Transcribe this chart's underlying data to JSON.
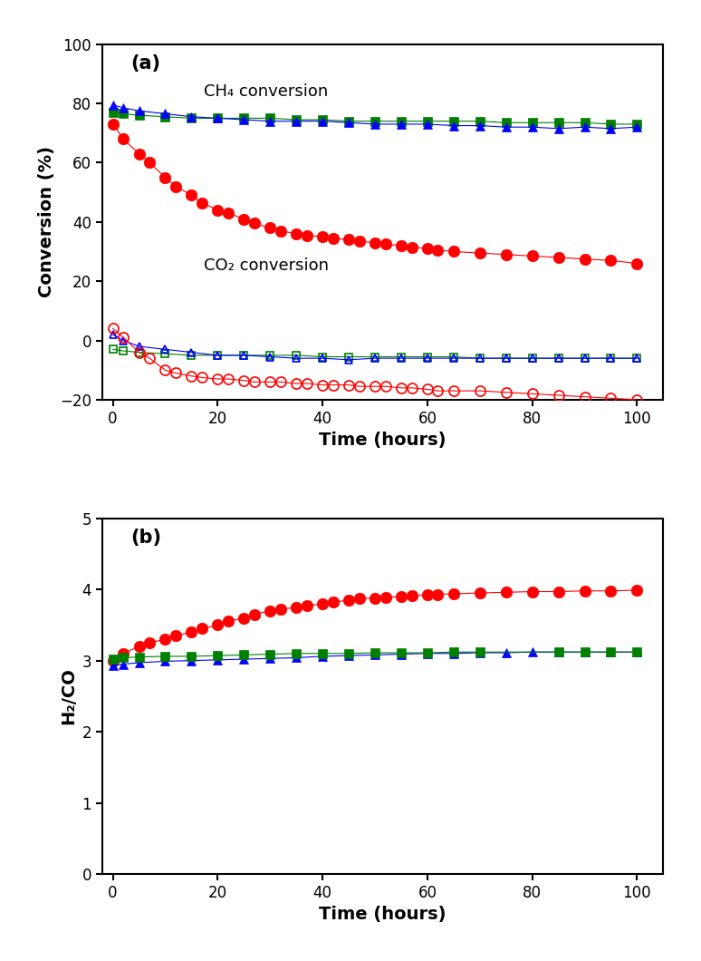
{
  "panel_a": {
    "title_label": "(a)",
    "xlabel": "Time (hours)",
    "ylabel": "Conversion (%)",
    "ylim": [
      -20,
      100
    ],
    "xlim": [
      -2,
      105
    ],
    "yticks": [
      -20,
      0,
      20,
      40,
      60,
      80,
      100
    ],
    "xticks": [
      0,
      20,
      40,
      60,
      80,
      100
    ],
    "ch4_label": "CH₄ conversion",
    "co2_label": "CO₂ conversion",
    "ch4_green_x": [
      0,
      2,
      5,
      10,
      15,
      20,
      25,
      30,
      35,
      40,
      45,
      50,
      55,
      60,
      65,
      70,
      75,
      80,
      85,
      90,
      95,
      100
    ],
    "ch4_green_y": [
      77,
      76.5,
      76,
      75.5,
      75,
      75,
      75,
      75,
      74.5,
      74.5,
      74,
      74,
      74,
      74,
      74,
      74,
      73.5,
      73.5,
      73.5,
      73.5,
      73,
      73
    ],
    "ch4_blue_x": [
      0,
      2,
      5,
      10,
      15,
      20,
      25,
      30,
      35,
      40,
      45,
      50,
      55,
      60,
      65,
      70,
      75,
      80,
      85,
      90,
      95,
      100
    ],
    "ch4_blue_y": [
      79.5,
      78.5,
      77.5,
      76.5,
      75.5,
      75,
      74.5,
      74,
      74,
      74,
      73.5,
      73,
      73,
      73,
      72.5,
      72.5,
      72,
      72,
      71.5,
      72,
      71.5,
      72
    ],
    "ch4_red_x": [
      0,
      2,
      5,
      7,
      10,
      12,
      15,
      17,
      20,
      22,
      25,
      27,
      30,
      32,
      35,
      37,
      40,
      42,
      45,
      47,
      50,
      52,
      55,
      57,
      60,
      62,
      65,
      70,
      75,
      80,
      85,
      90,
      95,
      100
    ],
    "ch4_red_y": [
      73,
      68,
      63,
      60,
      55,
      52,
      49,
      46.5,
      44,
      43,
      41,
      39.5,
      38,
      37,
      36,
      35.5,
      35,
      34.5,
      34,
      33.5,
      33,
      32.5,
      32,
      31.5,
      31,
      30.5,
      30,
      29.5,
      29,
      28.5,
      28,
      27.5,
      27,
      26
    ],
    "co2_green_x": [
      0,
      2,
      5,
      10,
      15,
      20,
      25,
      30,
      35,
      40,
      45,
      50,
      55,
      60,
      65,
      70,
      75,
      80,
      85,
      90,
      95,
      100
    ],
    "co2_green_y": [
      -3,
      -3.5,
      -4,
      -4.5,
      -5,
      -5,
      -5,
      -5,
      -5,
      -5.5,
      -5.5,
      -5.5,
      -5.5,
      -5.5,
      -5.5,
      -6,
      -6,
      -6,
      -6,
      -6,
      -6,
      -6
    ],
    "co2_blue_x": [
      0,
      2,
      5,
      10,
      15,
      20,
      25,
      30,
      35,
      40,
      45,
      50,
      55,
      60,
      65,
      70,
      75,
      80,
      85,
      90,
      95,
      100
    ],
    "co2_blue_y": [
      2,
      0,
      -2,
      -3,
      -4,
      -5,
      -5,
      -5.5,
      -6,
      -6,
      -6.5,
      -6,
      -6,
      -6,
      -6,
      -6,
      -6,
      -6,
      -6,
      -6,
      -6,
      -6
    ],
    "co2_red_x": [
      0,
      2,
      5,
      7,
      10,
      12,
      15,
      17,
      20,
      22,
      25,
      27,
      30,
      32,
      35,
      37,
      40,
      42,
      45,
      47,
      50,
      52,
      55,
      57,
      60,
      62,
      65,
      70,
      75,
      80,
      85,
      90,
      95,
      100
    ],
    "co2_red_y": [
      4,
      1,
      -4,
      -6,
      -10,
      -11,
      -12,
      -12.5,
      -13,
      -13,
      -13.5,
      -14,
      -14,
      -14,
      -14.5,
      -14.5,
      -15,
      -15,
      -15,
      -15.5,
      -15.5,
      -15.5,
      -16,
      -16,
      -16.5,
      -17,
      -17,
      -17,
      -17.5,
      -18,
      -18.5,
      -19,
      -19.5,
      -20
    ]
  },
  "panel_b": {
    "title_label": "(b)",
    "xlabel": "Time (hours)",
    "ylabel": "H₂/CO",
    "ylim": [
      0,
      5
    ],
    "xlim": [
      -2,
      105
    ],
    "yticks": [
      0,
      1,
      2,
      3,
      4,
      5
    ],
    "xticks": [
      0,
      20,
      40,
      60,
      80,
      100
    ],
    "red_x": [
      0,
      2,
      5,
      7,
      10,
      12,
      15,
      17,
      20,
      22,
      25,
      27,
      30,
      32,
      35,
      37,
      40,
      42,
      45,
      47,
      50,
      52,
      55,
      57,
      60,
      62,
      65,
      70,
      75,
      80,
      85,
      90,
      95,
      100
    ],
    "red_y": [
      3.0,
      3.1,
      3.2,
      3.25,
      3.3,
      3.35,
      3.4,
      3.45,
      3.5,
      3.55,
      3.6,
      3.65,
      3.7,
      3.72,
      3.75,
      3.77,
      3.8,
      3.82,
      3.85,
      3.87,
      3.88,
      3.89,
      3.9,
      3.91,
      3.92,
      3.93,
      3.94,
      3.95,
      3.96,
      3.97,
      3.97,
      3.98,
      3.98,
      3.99
    ],
    "blue_x": [
      0,
      2,
      5,
      10,
      15,
      20,
      25,
      30,
      35,
      40,
      45,
      50,
      55,
      60,
      65,
      70,
      75,
      80,
      85,
      90,
      95,
      100
    ],
    "blue_y": [
      2.93,
      2.95,
      2.97,
      2.99,
      3.0,
      3.01,
      3.02,
      3.03,
      3.04,
      3.06,
      3.07,
      3.08,
      3.09,
      3.1,
      3.1,
      3.11,
      3.11,
      3.12,
      3.12,
      3.12,
      3.12,
      3.12
    ],
    "green_x": [
      0,
      2,
      5,
      10,
      15,
      20,
      25,
      30,
      35,
      40,
      45,
      50,
      55,
      60,
      65,
      70,
      85,
      90,
      95,
      100
    ],
    "green_y": [
      3.02,
      3.04,
      3.05,
      3.06,
      3.06,
      3.07,
      3.08,
      3.09,
      3.1,
      3.1,
      3.1,
      3.11,
      3.11,
      3.11,
      3.12,
      3.12,
      3.12,
      3.12,
      3.12,
      3.12
    ]
  },
  "colors": {
    "red": "#FF0000",
    "blue": "#0000FF",
    "green": "#008000"
  },
  "fig_width": 7.74,
  "fig_height": 10.6,
  "dpi": 100
}
